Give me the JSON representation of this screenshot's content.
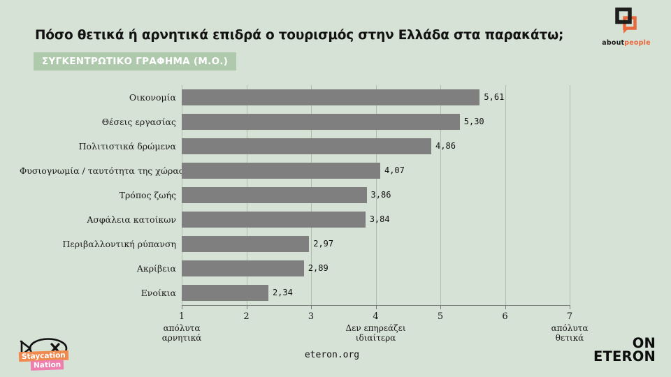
{
  "page": {
    "background": "#d7e2d6"
  },
  "header": {
    "title": "Πόσο θετικά ή αρνητικά επιδρά ο τουρισμός στην Ελλάδα στα παρακάτω;",
    "badge": "ΣΥΓΚΕΝΤΡΩΤΙΚΟ ΓΡΑΦΗΜΑ (Μ.Ο.)"
  },
  "brand_top": {
    "word_black": "about",
    "word_orange": "people",
    "orange": "#e8693d",
    "black": "#1d1d1b"
  },
  "chart_data": {
    "type": "bar",
    "orientation": "horizontal",
    "categories": [
      "Οικονομία",
      "Θέσεις εργασίας",
      "Πολιτιστικά δρώμενα",
      "Φυσιογνωμία / ταυτότητα της χώρας",
      "Τρόπος ζωής",
      "Ασφάλεια κατοίκων",
      "Περιβαλλοντική ρύπανση",
      "Ακρίβεια",
      "Ενοίκια"
    ],
    "values": [
      5.61,
      5.3,
      4.86,
      4.07,
      3.86,
      3.84,
      2.97,
      2.89,
      2.34
    ],
    "value_labels": [
      "5,61",
      "5,30",
      "4,86",
      "4,07",
      "3,86",
      "3,84",
      "2,97",
      "2,89",
      "2,34"
    ],
    "xlim": [
      1,
      7
    ],
    "x_ticks": [
      1,
      2,
      3,
      4,
      5,
      6,
      7
    ],
    "x_tick_labels": [
      "1",
      "2",
      "3",
      "4",
      "5",
      "6",
      "7"
    ],
    "axis_annotations": [
      {
        "tick": 1,
        "lines": [
          "απόλυτα",
          "αρνητικά"
        ]
      },
      {
        "tick": 4,
        "lines": [
          "Δεν επηρεάζει",
          "ιδιαίτερα"
        ]
      },
      {
        "tick": 7,
        "lines": [
          "απόλυτα",
          "θετικά"
        ]
      }
    ],
    "bar_color": "#7f7f7f",
    "grid": true,
    "legend": false
  },
  "footer": {
    "url": "eteron.org",
    "staynation": {
      "line1": "Staycation",
      "line2": "Nation",
      "orange": "#ef8b50",
      "pink": "#ee7fae"
    },
    "eteron_logo": {
      "line1": "ON",
      "line2": "ETERON"
    }
  }
}
